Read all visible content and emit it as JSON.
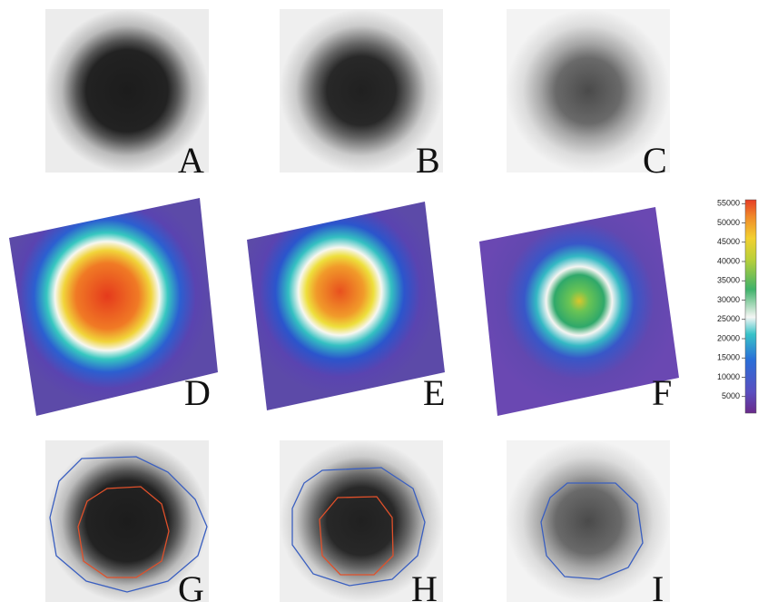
{
  "panels": [
    {
      "label": "A"
    },
    {
      "label": "B"
    },
    {
      "label": "C"
    },
    {
      "label": "D"
    },
    {
      "label": "E"
    },
    {
      "label": "F"
    },
    {
      "label": "G"
    },
    {
      "label": "H"
    },
    {
      "label": "I"
    }
  ],
  "colorbar": {
    "lim": [
      700,
      56000
    ],
    "ticks": [
      5000,
      10000,
      15000,
      20000,
      25000,
      30000,
      35000,
      40000,
      45000,
      50000,
      55000
    ]
  }
}
